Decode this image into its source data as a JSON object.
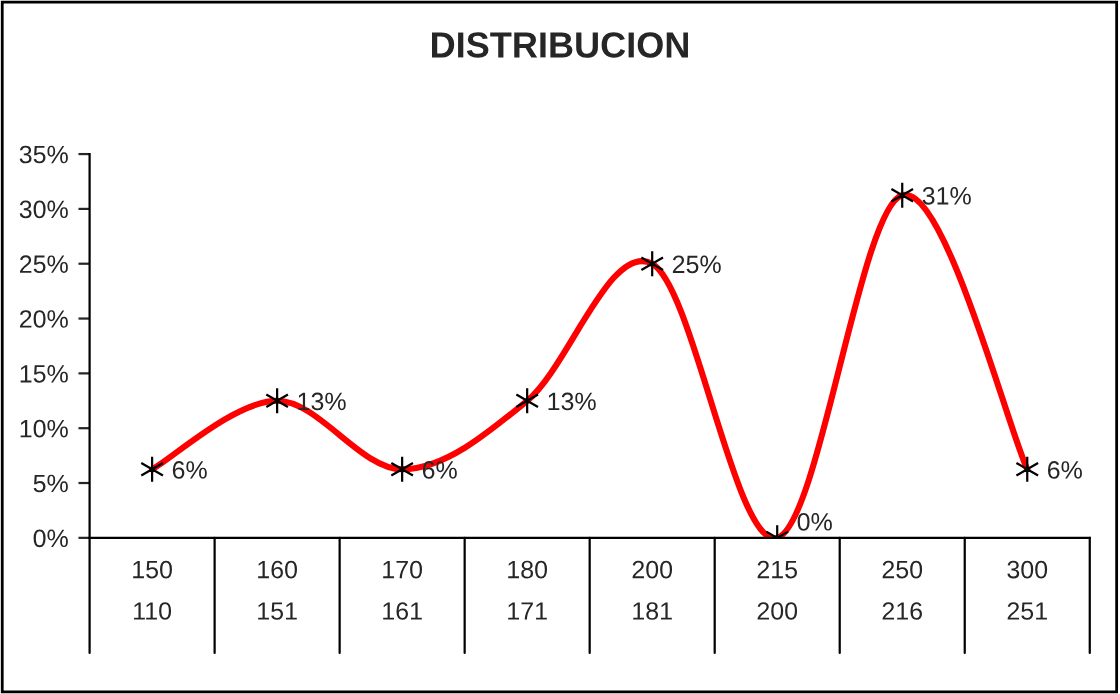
{
  "chart_data": {
    "type": "line",
    "title": "DISTRIBUCION",
    "categories": [
      "150\n110",
      "160\n151",
      "170\n161",
      "180\n171",
      "200\n181",
      "215\n200",
      "250\n216",
      "300\n251"
    ],
    "series": [
      {
        "color": "#ff0000",
        "values": [
          6.25,
          12.5,
          6.25,
          12.5,
          25,
          0,
          31.25,
          6.25
        ],
        "value_labels": [
          "6%",
          "13%",
          "6%",
          "13%",
          "25%",
          "0%",
          "31%",
          "6%"
        ]
      }
    ],
    "ylim": [
      0,
      35
    ],
    "yticks": [
      {
        "value": 0,
        "label": "0%"
      },
      {
        "value": 5,
        "label": "5%"
      },
      {
        "value": 10,
        "label": "10%"
      },
      {
        "value": 15,
        "label": "15%"
      },
      {
        "value": 20,
        "label": "20%"
      },
      {
        "value": 25,
        "label": "25%"
      },
      {
        "value": 30,
        "label": "30%"
      },
      {
        "value": 35,
        "label": "35%"
      }
    ],
    "marker": "cross",
    "line_style": "solid",
    "grid": false,
    "legend": false
  }
}
